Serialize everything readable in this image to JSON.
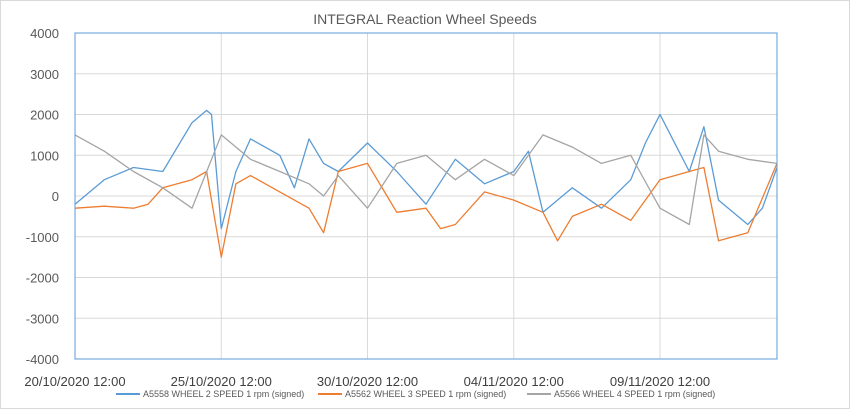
{
  "chart_data": {
    "type": "line",
    "title": "INTEGRAL Reaction Wheel Speeds",
    "xlabel": "",
    "ylabel": "",
    "ylim": [
      -4000,
      4000
    ],
    "yticks": [
      4000,
      3000,
      2000,
      1000,
      0,
      -1000,
      -2000,
      -3000,
      -4000
    ],
    "xlim": [
      "2020-10-20 12:00",
      "2020-11-13 12:00"
    ],
    "xticks": [
      "20/10/2020 12:00",
      "25/10/2020 12:00",
      "30/10/2020 12:00",
      "04/11/2020 12:00",
      "09/11/2020 12:00"
    ],
    "grid": true,
    "legend_position": "bottom",
    "series": [
      {
        "name": "A5558 WHEEL 2 SPEED 1 rpm (signed)",
        "color": "#5b9bd5",
        "x": [
          "2020-10-20 12:00",
          "2020-10-21 12:00",
          "2020-10-22 12:00",
          "2020-10-23 12:00",
          "2020-10-24 00:00",
          "2020-10-24 12:00",
          "2020-10-25 00:00",
          "2020-10-25 04:00",
          "2020-10-25 12:00",
          "2020-10-26 00:00",
          "2020-10-26 12:00",
          "2020-10-27 12:00",
          "2020-10-28 00:00",
          "2020-10-28 12:00",
          "2020-10-29 00:00",
          "2020-10-29 12:00",
          "2020-10-30 12:00",
          "2020-10-31 12:00",
          "2020-11-01 12:00",
          "2020-11-02 12:00",
          "2020-11-03 12:00",
          "2020-11-04 12:00",
          "2020-11-05 00:00",
          "2020-11-05 12:00",
          "2020-11-06 12:00",
          "2020-11-07 12:00",
          "2020-11-08 12:00",
          "2020-11-09 00:00",
          "2020-11-09 12:00",
          "2020-11-10 12:00",
          "2020-11-11 00:00",
          "2020-11-11 12:00",
          "2020-11-12 12:00",
          "2020-11-13 00:00",
          "2020-11-13 12:00"
        ],
        "y": [
          -200,
          400,
          700,
          600,
          1200,
          1800,
          2100,
          2000,
          -800,
          600,
          1400,
          1000,
          200,
          1400,
          800,
          600,
          1300,
          600,
          -200,
          900,
          300,
          600,
          1100,
          -400,
          200,
          -300,
          400,
          1300,
          2000,
          600,
          1700,
          -100,
          -700,
          -300,
          700
        ]
      },
      {
        "name": "A5562 WHEEL 3 SPEED 1 rpm (signed)",
        "color": "#ed7d31",
        "x": [
          "2020-10-20 12:00",
          "2020-10-21 12:00",
          "2020-10-22 12:00",
          "2020-10-23 00:00",
          "2020-10-23 12:00",
          "2020-10-24 12:00",
          "2020-10-25 00:00",
          "2020-10-25 12:00",
          "2020-10-26 00:00",
          "2020-10-26 12:00",
          "2020-10-27 12:00",
          "2020-10-28 12:00",
          "2020-10-29 00:00",
          "2020-10-29 12:00",
          "2020-10-30 12:00",
          "2020-10-31 12:00",
          "2020-11-01 12:00",
          "2020-11-02 00:00",
          "2020-11-02 12:00",
          "2020-11-03 12:00",
          "2020-11-04 12:00",
          "2020-11-05 12:00",
          "2020-11-06 00:00",
          "2020-11-06 12:00",
          "2020-11-07 12:00",
          "2020-11-08 12:00",
          "2020-11-09 12:00",
          "2020-11-10 12:00",
          "2020-11-11 00:00",
          "2020-11-11 12:00",
          "2020-11-12 12:00",
          "2020-11-13 12:00"
        ],
        "y": [
          -300,
          -250,
          -300,
          -200,
          200,
          400,
          600,
          -1500,
          300,
          500,
          100,
          -300,
          -900,
          600,
          800,
          -400,
          -300,
          -800,
          -700,
          100,
          -100,
          -400,
          -1100,
          -500,
          -200,
          -600,
          400,
          600,
          700,
          -1100,
          -900,
          800
        ]
      },
      {
        "name": "A5566 WHEEL 4 SPEED 1 rpm (signed)",
        "color": "#a5a5a5",
        "x": [
          "2020-10-20 12:00",
          "2020-10-21 12:00",
          "2020-10-22 12:00",
          "2020-10-23 12:00",
          "2020-10-24 12:00",
          "2020-10-25 12:00",
          "2020-10-26 12:00",
          "2020-10-27 12:00",
          "2020-10-28 12:00",
          "2020-10-29 00:00",
          "2020-10-29 12:00",
          "2020-10-30 12:00",
          "2020-10-31 12:00",
          "2020-11-01 12:00",
          "2020-11-02 12:00",
          "2020-11-03 12:00",
          "2020-11-04 12:00",
          "2020-11-05 12:00",
          "2020-11-06 12:00",
          "2020-11-07 12:00",
          "2020-11-08 12:00",
          "2020-11-09 12:00",
          "2020-11-10 12:00",
          "2020-11-11 00:00",
          "2020-11-11 12:00",
          "2020-11-12 12:00",
          "2020-11-13 12:00"
        ],
        "y": [
          1500,
          1100,
          600,
          200,
          -300,
          1500,
          900,
          600,
          300,
          0,
          500,
          -300,
          800,
          1000,
          400,
          900,
          500,
          1500,
          1200,
          800,
          1000,
          -300,
          -700,
          1500,
          1100,
          900,
          800
        ]
      }
    ]
  }
}
